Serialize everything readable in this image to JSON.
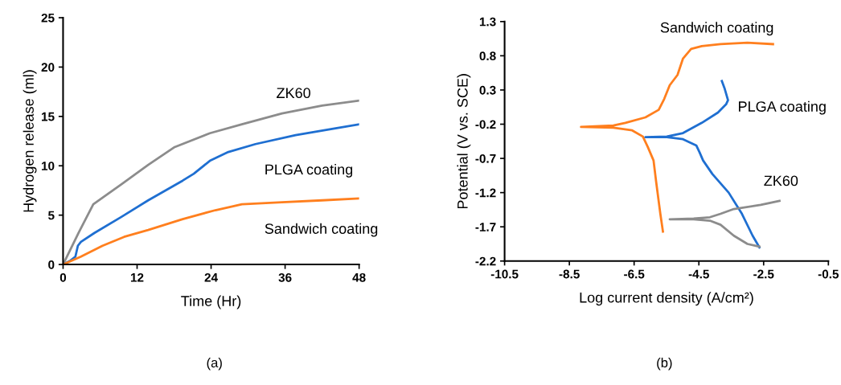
{
  "chart_data": [
    {
      "type": "line",
      "xlabel": "Time (Hr)",
      "ylabel": "Hydrogen release (ml)",
      "xlim": [
        0,
        48
      ],
      "ylim": [
        0,
        25
      ],
      "xticks": [
        0,
        12,
        24,
        36,
        48
      ],
      "yticks": [
        0,
        5,
        10,
        15,
        20,
        25
      ],
      "grid": false,
      "series": [
        {
          "name": "ZK60",
          "color": "#8c8c8c",
          "x": [
            0,
            2.5,
            4.9,
            6,
            9.4,
            13.8,
            18.1,
            23.8,
            29,
            35.5,
            42,
            48
          ],
          "values": [
            0,
            3.2,
            6.1,
            6.6,
            8.1,
            10.1,
            11.9,
            13.3,
            14.2,
            15.3,
            16.1,
            16.6
          ]
        },
        {
          "name": "PLGA coating",
          "color": "#1f6fd1",
          "x": [
            0,
            1.2,
            2,
            2.4,
            2.9,
            5.1,
            9.4,
            13.8,
            19.4,
            21.2,
            23.8,
            26.8,
            31.2,
            37.7,
            44.2,
            48
          ],
          "values": [
            0,
            0.4,
            0.8,
            1.9,
            2.3,
            3.2,
            4.8,
            6.5,
            8.5,
            9.2,
            10.5,
            11.4,
            12.2,
            13.1,
            13.8,
            14.2
          ]
        },
        {
          "name": "Sandwich coating",
          "color": "#ff7f1e",
          "x": [
            0,
            2.9,
            6.4,
            9.9,
            13.8,
            19.4,
            24.7,
            29,
            35.5,
            42,
            48
          ],
          "values": [
            0,
            0.8,
            1.9,
            2.8,
            3.5,
            4.6,
            5.5,
            6.1,
            6.3,
            6.5,
            6.7
          ]
        }
      ],
      "annotations": [
        "(a)"
      ]
    },
    {
      "type": "line",
      "xlabel": "Log current density (A/cm²)",
      "ylabel": "Potential (V vs. SCE)",
      "xlim": [
        -10.5,
        -0.5
      ],
      "ylim": [
        -2.2,
        1.3
      ],
      "xticks": [
        -10.5,
        -8.5,
        -6.5,
        -4.5,
        -2.5,
        -0.5
      ],
      "yticks": [
        1.3,
        0.8,
        0.3,
        -0.2,
        -0.7,
        -1.2,
        -1.7,
        -2.2
      ],
      "grid": false,
      "series": [
        {
          "name": "Sandwich coating",
          "color": "#ff7f1e",
          "x": [
            -5.61,
            -5.69,
            -5.82,
            -5.9,
            -6.08,
            -6.23,
            -6.56,
            -7.14,
            -8.14,
            -7.14,
            -6.77,
            -6.15,
            -5.74,
            -5.57,
            -5.4,
            -5.16,
            -4.99,
            -4.74,
            -4.41,
            -3.83,
            -3.0,
            -2.21
          ],
          "values": [
            -1.77,
            -1.51,
            -1.04,
            -0.73,
            -0.53,
            -0.38,
            -0.29,
            -0.25,
            -0.24,
            -0.22,
            -0.18,
            -0.1,
            0.01,
            0.17,
            0.37,
            0.52,
            0.76,
            0.9,
            0.94,
            0.97,
            0.99,
            0.97
          ]
        },
        {
          "name": "PLGA coating",
          "color": "#1f6fd1",
          "x": [
            -2.63,
            -2.84,
            -3.17,
            -3.58,
            -4.08,
            -4.37,
            -4.48,
            -4.58,
            -4.99,
            -5.49,
            -6.15,
            -5.49,
            -4.99,
            -4.41,
            -3.91,
            -3.66,
            -3.6,
            -3.71,
            -3.79
          ],
          "values": [
            -2.0,
            -1.83,
            -1.51,
            -1.2,
            -0.93,
            -0.73,
            -0.61,
            -0.51,
            -0.42,
            -0.39,
            -0.39,
            -0.38,
            -0.33,
            -0.18,
            -0.03,
            0.09,
            0.15,
            0.33,
            0.43
          ]
        },
        {
          "name": "ZK60",
          "color": "#8c8c8c",
          "x": [
            -2.63,
            -3.0,
            -3.42,
            -3.83,
            -4.16,
            -4.66,
            -5.4,
            -4.66,
            -4.16,
            -3.83,
            -3.42,
            -2.59,
            -2.01
          ],
          "values": [
            -1.99,
            -1.95,
            -1.83,
            -1.67,
            -1.61,
            -1.59,
            -1.59,
            -1.58,
            -1.56,
            -1.51,
            -1.44,
            -1.38,
            -1.32
          ]
        }
      ],
      "annotations": [
        "(b)"
      ]
    }
  ]
}
